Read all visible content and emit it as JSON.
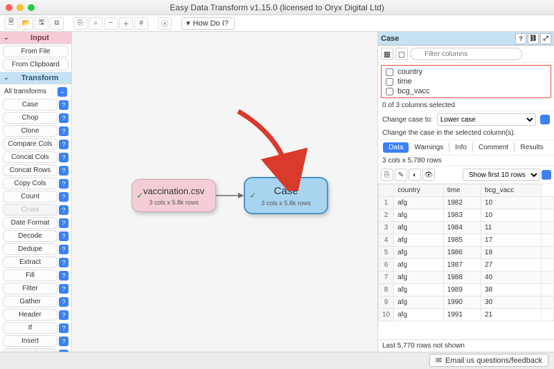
{
  "window": {
    "title": "Easy Data Transform v1.15.0 (licensed to Oryx Digital Ltd)"
  },
  "toolbar": {
    "howdoi": "How Do I?"
  },
  "sidebar": {
    "input_header": "Input",
    "input_items": [
      "From File",
      "From Clipboard"
    ],
    "transform_header": "Transform",
    "all_transforms": "All transforms",
    "transform_items": [
      "Case",
      "Chop",
      "Clone",
      "Compare Cols",
      "Concat Cols",
      "Concat Rows",
      "Copy Cols",
      "Count",
      "Cross",
      "Date Format",
      "Decode",
      "Dedupe",
      "Extract",
      "Fill",
      "Filter",
      "Gather",
      "Header",
      "If",
      "Insert",
      "Interpolate"
    ],
    "disabled": [
      "Cross",
      "Interpolate"
    ]
  },
  "canvas": {
    "node1": {
      "title": "vaccination.csv",
      "sub": "3 cols x 5.8k rows"
    },
    "node2": {
      "title": "Case",
      "sub": "3 cols x 5.8k rows"
    }
  },
  "panel": {
    "title": "Case",
    "filter_placeholder": "Filter columns",
    "columns": [
      "country",
      "time",
      "bcg_vacc"
    ],
    "selected_text": "0 of 3 columns selected",
    "change_label": "Change case to:",
    "change_value": "Lower case",
    "description": "Change the case in the selected column(s).",
    "tabs": [
      "Data",
      "Warnings",
      "Info",
      "Comment",
      "Results"
    ],
    "active_tab": "Data",
    "dims": "3 cols x 5,780 rows",
    "show_label": "Show first 10 rows",
    "headers": [
      "",
      "country",
      "time",
      "bcg_vacc"
    ],
    "rows": [
      [
        "1",
        "afg",
        "1982",
        "10"
      ],
      [
        "2",
        "afg",
        "1983",
        "10"
      ],
      [
        "3",
        "afg",
        "1984",
        "11"
      ],
      [
        "4",
        "afg",
        "1985",
        "17"
      ],
      [
        "5",
        "afg",
        "1986",
        "18"
      ],
      [
        "6",
        "afg",
        "1987",
        "27"
      ],
      [
        "7",
        "afg",
        "1988",
        "40"
      ],
      [
        "8",
        "afg",
        "1989",
        "38"
      ],
      [
        "9",
        "afg",
        "1990",
        "30"
      ],
      [
        "10",
        "afg",
        "1991",
        "21"
      ]
    ],
    "last_line": "Last 5,770 rows not shown"
  },
  "footer": {
    "email": "Email us questions/feedback"
  },
  "colors": {
    "pink": "#f4cdd7",
    "blue": "#a8d4f0",
    "accent": "#3b82f6",
    "red_border": "#e74c3c"
  }
}
